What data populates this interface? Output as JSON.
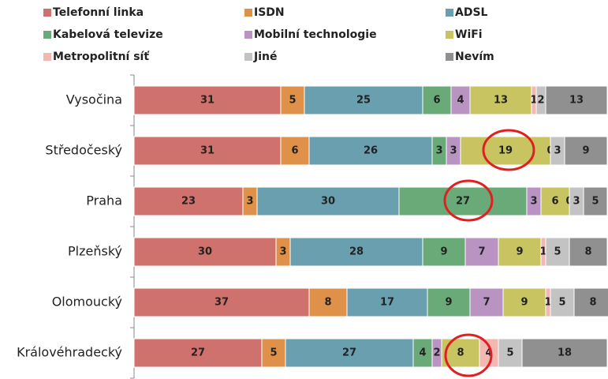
{
  "chart_data": {
    "type": "bar",
    "orientation": "horizontal",
    "stacked": true,
    "categories": [
      "Vysočina",
      "Středočeský",
      "Praha",
      "Plzeňský",
      "Olomoucký",
      "Královéhradecký"
    ],
    "xlim": [
      0,
      100
    ],
    "series": [
      {
        "name": "Telefonní linka",
        "color": "#cf716c",
        "values": [
          31,
          31,
          23,
          30,
          37,
          27
        ]
      },
      {
        "name": "ISDN",
        "color": "#e09149",
        "values": [
          5,
          6,
          3,
          3,
          8,
          5
        ]
      },
      {
        "name": "ADSL",
        "color": "#6a9fb0",
        "values": [
          25,
          26,
          30,
          28,
          17,
          27
        ]
      },
      {
        "name": "Kabelová televize",
        "color": "#6aaa78",
        "values": [
          6,
          3,
          27,
          9,
          9,
          4
        ]
      },
      {
        "name": "Mobilní technologie",
        "color": "#b994c2",
        "values": [
          4,
          3,
          3,
          7,
          7,
          2
        ]
      },
      {
        "name": "WiFi",
        "color": "#c8c462",
        "values": [
          13,
          19,
          6,
          9,
          9,
          8
        ]
      },
      {
        "name": "Metropolitní síť",
        "color": "#f1b7b0",
        "values": [
          1,
          0,
          0,
          1,
          1,
          4
        ]
      },
      {
        "name": "Jiné",
        "color": "#c3c3c3",
        "values": [
          2,
          3,
          3,
          5,
          5,
          5
        ]
      },
      {
        "name": "Nevím",
        "color": "#909090",
        "values": [
          13,
          9,
          5,
          8,
          8,
          18
        ]
      }
    ]
  }
}
